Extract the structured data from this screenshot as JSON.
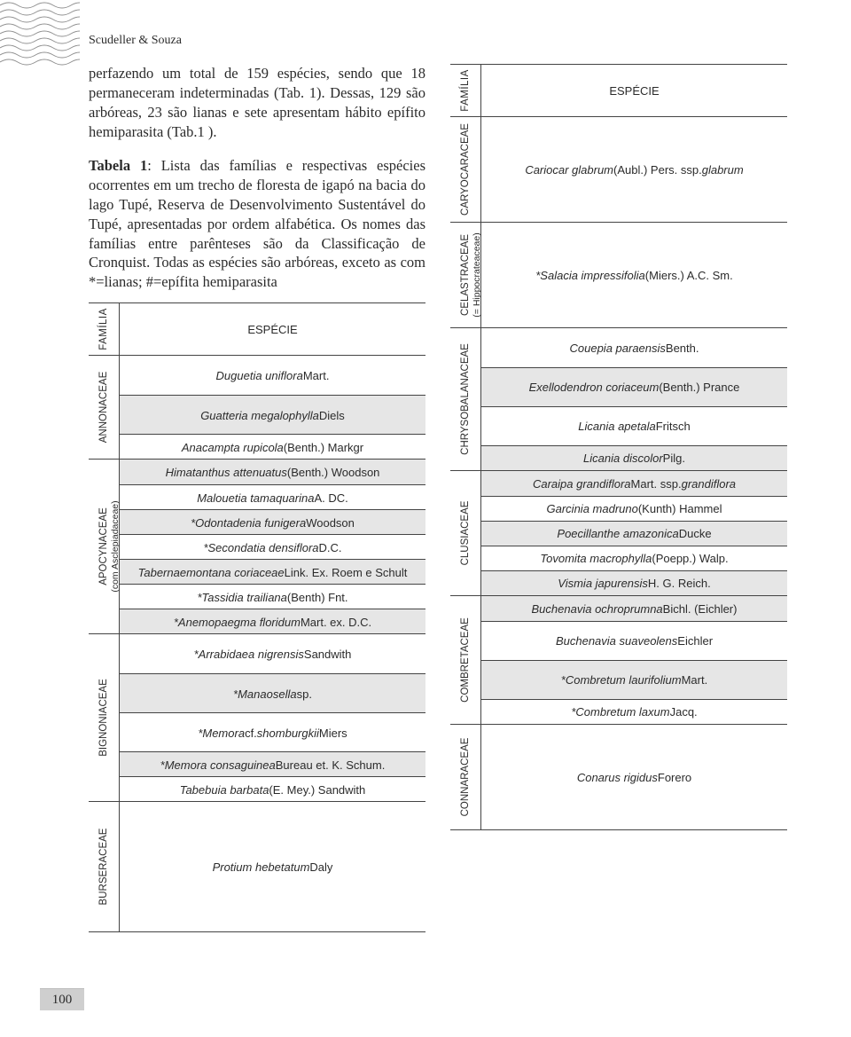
{
  "page_number": "100",
  "authors": "Scudeller & Souza",
  "intro": "perfazendo um total de 159 espécies, sendo que 18 permaneceram indeterminadas (Tab. 1). Dessas, 129 são arbóreas, 23 são lianas e sete apresentam hábito epífito hemiparasita (Tab.1 ).",
  "table_label": "Tabela 1",
  "table_caption": ": Lista das famílias e respectivas espécies ocorrentes em um trecho de floresta de igapó na bacia do lago Tupé, Reserva de Desenvolvimento Sustentável do Tupé, apresentadas por ordem alfabética. Os nomes das famílias entre parênteses são da Classificação de Cronquist. Todas as espécies são arbóreas, exceto as com *=lianas; #=epífita hemiparasita",
  "header_family": "FAMÍLIA",
  "header_species": "ESPÉCIE",
  "left": [
    {
      "family": "ANNONACEAE",
      "sub": "",
      "species": [
        "<i>Duguetia uniflora</i> Mart.",
        "<i>Guatteria megalophylla</i> Diels",
        "<i>Anacampta rupicola</i> (Benth.) Markgr"
      ],
      "large": [
        0,
        1
      ]
    },
    {
      "family": "APOCYNACEAE",
      "sub": "(com Asclepiadaceae)",
      "species": [
        "<i>Himatanthus attenuatus</i> (Benth.) Woodson",
        "<i>Malouetia tamaquarina</i> A. DC.",
        "<i>*Odontadenia funigera</i> Woodson",
        "<i>*Secondatia densiflora</i> D.C.",
        "<i>Tabernaemontana coriaceae</i> Link. Ex. Roem e Schult",
        "<i>*Tassidia trailiana</i> (Benth) Fnt.",
        "<i>*Anemopaegma floridum</i> Mart. ex. D.C."
      ]
    },
    {
      "family": "BIGNONIACEAE",
      "sub": "",
      "species": [
        "<i>*Arrabidaea nigrensis</i> Sandwith",
        "<i>*Manaosella</i> sp.",
        "<i>*Memora</i> cf. <i>shomburgkii</i> Miers",
        "<i>*Memora consaguinea</i> Bureau et. K. Schum.",
        "<i>Tabebuia barbata</i> (E. Mey.) Sandwith"
      ],
      "large": [
        0,
        1,
        2
      ]
    },
    {
      "family": "BURSERACEAE",
      "sub": "",
      "species": [
        "<i>Protium hebetatum</i> Daly"
      ],
      "large": [
        0
      ],
      "xl": true
    }
  ],
  "right": [
    {
      "family": "CARYOCARACEAE",
      "sub": "",
      "species": [
        "<i>Cariocar glabrum</i> (Aubl.) Pers. ssp. <i>glabrum</i>"
      ],
      "large": [
        0
      ]
    },
    {
      "family": "CELASTRACEAE",
      "sub": "(= Hippocrateaceae)",
      "species": [
        "<i>*Salacia impressifolia</i> (Miers.) A.C. Sm."
      ],
      "large": [
        0
      ]
    },
    {
      "family": "CHRYSOBALANACEAE",
      "sub": "",
      "species": [
        "<i>Couepia paraensis</i> Benth.",
        "<i>Exellodendron coriaceum</i> (Benth.) Prance",
        "<i>Licania apetala</i> Fritsch",
        "<i>Licania discolor</i> Pilg."
      ],
      "large": [
        0,
        1,
        2
      ]
    },
    {
      "family": "CLUSIACEAE",
      "sub": "",
      "species": [
        "<i>Caraipa grandiflora</i> Mart. ssp. <i>grandiflora</i>",
        "<i>Garcinia madruno</i> (Kunth) Hammel",
        "<i>Poecillanthe amazonica</i> Ducke",
        "<i>Tovomita macrophylla</i> (Poepp.) Walp.",
        "<i>Vismia japurensis</i> H. G. Reich."
      ]
    },
    {
      "family": "COMBRETACEAE",
      "sub": "",
      "species": [
        "<i>Buchenavia ochroprumna</i> Bichl. (Eichler)",
        "<i>Buchenavia suaveolens</i> Eichler",
        "<i>*Combretum laurifolium</i> Mart.",
        "<i>*Combretum laxum</i> Jacq."
      ],
      "large": [
        1,
        2
      ]
    },
    {
      "family": "CONNARACEAE",
      "sub": "",
      "species": [
        "<i>Conarus rigidus</i> Forero"
      ],
      "large": [
        0
      ]
    }
  ]
}
